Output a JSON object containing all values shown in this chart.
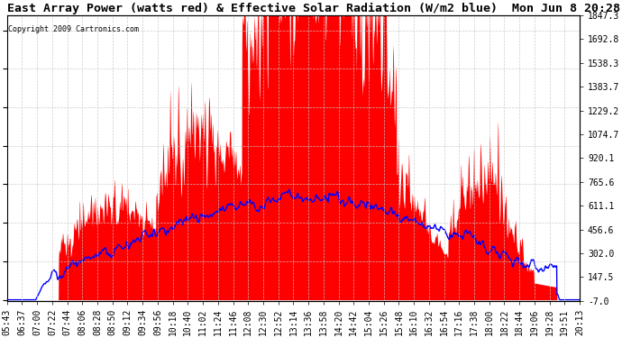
{
  "title": "East Array Power (watts red) & Effective Solar Radiation (W/m2 blue)  Mon Jun 8 20:28",
  "copyright": "Copyright 2009 Cartronics.com",
  "ylabel_right_ticks": [
    1847.3,
    1692.8,
    1538.3,
    1383.7,
    1229.2,
    1074.7,
    920.1,
    765.6,
    611.1,
    456.6,
    302.0,
    147.5,
    -7.0
  ],
  "ymin": -7.0,
  "ymax": 1847.3,
  "background_color": "#ffffff",
  "plot_bg_color": "#ffffff",
  "grid_color": "#c8c8c8",
  "fill_color": "#ff0000",
  "line_color": "#0000ff",
  "title_fontsize": 9.5,
  "tick_fontsize": 7,
  "x_labels": [
    "05:43",
    "06:37",
    "07:00",
    "07:22",
    "07:44",
    "08:06",
    "08:28",
    "08:50",
    "09:12",
    "09:34",
    "09:56",
    "10:18",
    "10:40",
    "11:02",
    "11:24",
    "11:46",
    "12:08",
    "12:30",
    "12:52",
    "13:14",
    "13:36",
    "13:58",
    "14:20",
    "14:42",
    "15:04",
    "15:26",
    "15:48",
    "16:10",
    "16:32",
    "16:54",
    "17:16",
    "17:38",
    "18:00",
    "18:22",
    "18:44",
    "19:06",
    "19:28",
    "19:51",
    "20:13"
  ]
}
